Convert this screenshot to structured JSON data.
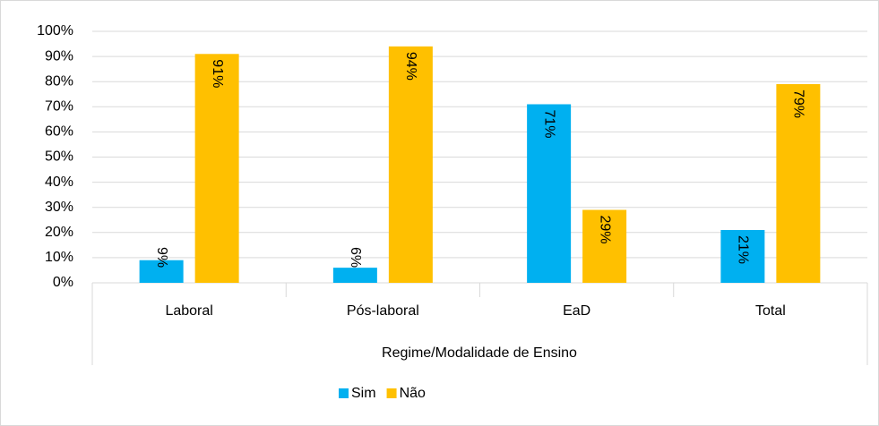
{
  "chart_data": {
    "type": "bar",
    "x_label": "Regime/Modalidade de Ensino",
    "categories": [
      "Laboral",
      "Pós-laboral",
      "EaD",
      "Total"
    ],
    "series": [
      {
        "name": "Sim",
        "color": "#00b0f0",
        "values": [
          9,
          6,
          71,
          21
        ],
        "value_labels": [
          "9%",
          "6%",
          "71%",
          "21%"
        ]
      },
      {
        "name": "Não",
        "color": "#ffc000",
        "values": [
          91,
          94,
          29,
          79
        ],
        "value_labels": [
          "91%",
          "94%",
          "29%",
          "79%"
        ]
      }
    ],
    "ylim": [
      0,
      100
    ],
    "yticks": [
      {
        "value": 0,
        "label": "0%"
      },
      {
        "value": 10,
        "label": "10%"
      },
      {
        "value": 20,
        "label": "20%"
      },
      {
        "value": 30,
        "label": "30%"
      },
      {
        "value": 40,
        "label": "40%"
      },
      {
        "value": 50,
        "label": "50%"
      },
      {
        "value": 60,
        "label": "60%"
      },
      {
        "value": 70,
        "label": "70%"
      },
      {
        "value": 80,
        "label": "80%"
      },
      {
        "value": 90,
        "label": "90%"
      },
      {
        "value": 100,
        "label": "100%"
      }
    ],
    "grid": true,
    "legend": "bottom"
  }
}
